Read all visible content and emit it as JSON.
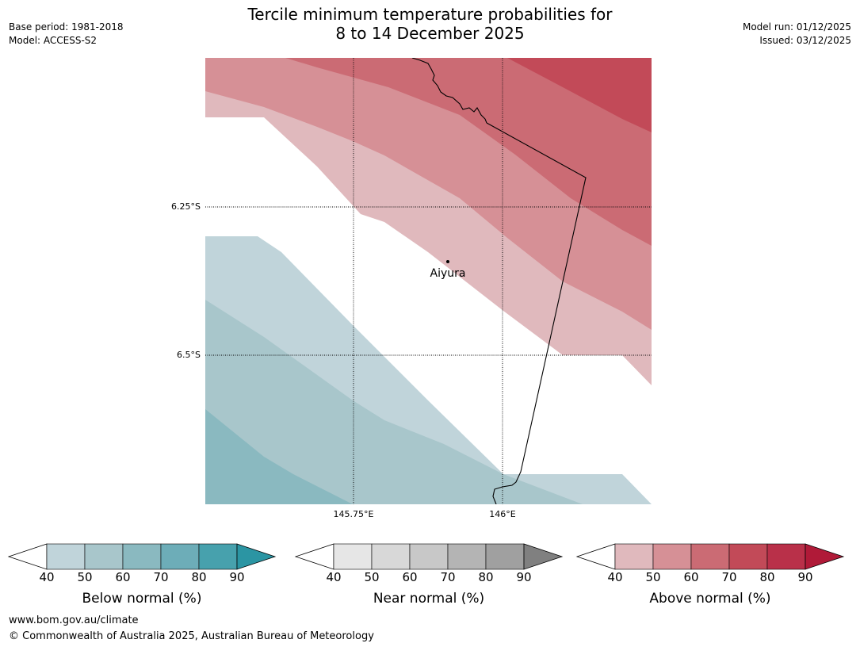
{
  "header": {
    "title_line1": "Tercile minimum temperature probabilities for",
    "title_line2": "8 to 14 December 2025",
    "base_period": "Base period: 1981-2018",
    "model": "Model: ACCESS-S2",
    "model_run": "Model run: 01/12/2025",
    "issued": "Issued: 03/12/2025"
  },
  "map": {
    "lat_labels": [
      "6.25°S",
      "6.5°S"
    ],
    "lon_labels": [
      "145.75°E",
      "146°E"
    ],
    "place": "Aiyura",
    "colors": {
      "above_40": "#e0b9bd",
      "above_50": "#d69096",
      "above_60": "#cb6b74",
      "above_70": "#c24a58",
      "below_40": "#c0d4da",
      "below_50": "#a8c6cb",
      "below_60": "#8ab9c0"
    }
  },
  "colorbars": [
    {
      "title": "Below normal (%)",
      "ticks": [
        "40",
        "50",
        "60",
        "70",
        "80",
        "90"
      ],
      "colors": [
        "#c0d4da",
        "#a8c6cb",
        "#8ab9c0",
        "#6dadb8",
        "#47a1ad",
        "#2b95a3"
      ]
    },
    {
      "title": "Near normal (%)",
      "ticks": [
        "40",
        "50",
        "60",
        "70",
        "80",
        "90"
      ],
      "colors": [
        "#e6e6e6",
        "#d8d8d8",
        "#c8c8c8",
        "#b4b4b4",
        "#a0a0a0",
        "#808080"
      ]
    },
    {
      "title": "Above normal (%)",
      "ticks": [
        "40",
        "50",
        "60",
        "70",
        "80",
        "90"
      ],
      "colors": [
        "#e0b9bd",
        "#d69096",
        "#cb6b74",
        "#c24a58",
        "#b93049",
        "#b01a38"
      ]
    }
  ],
  "footer": {
    "url": "www.bom.gov.au/climate",
    "copyright": "© Commonwealth of Australia 2025, Australian Bureau of Meteorology"
  }
}
